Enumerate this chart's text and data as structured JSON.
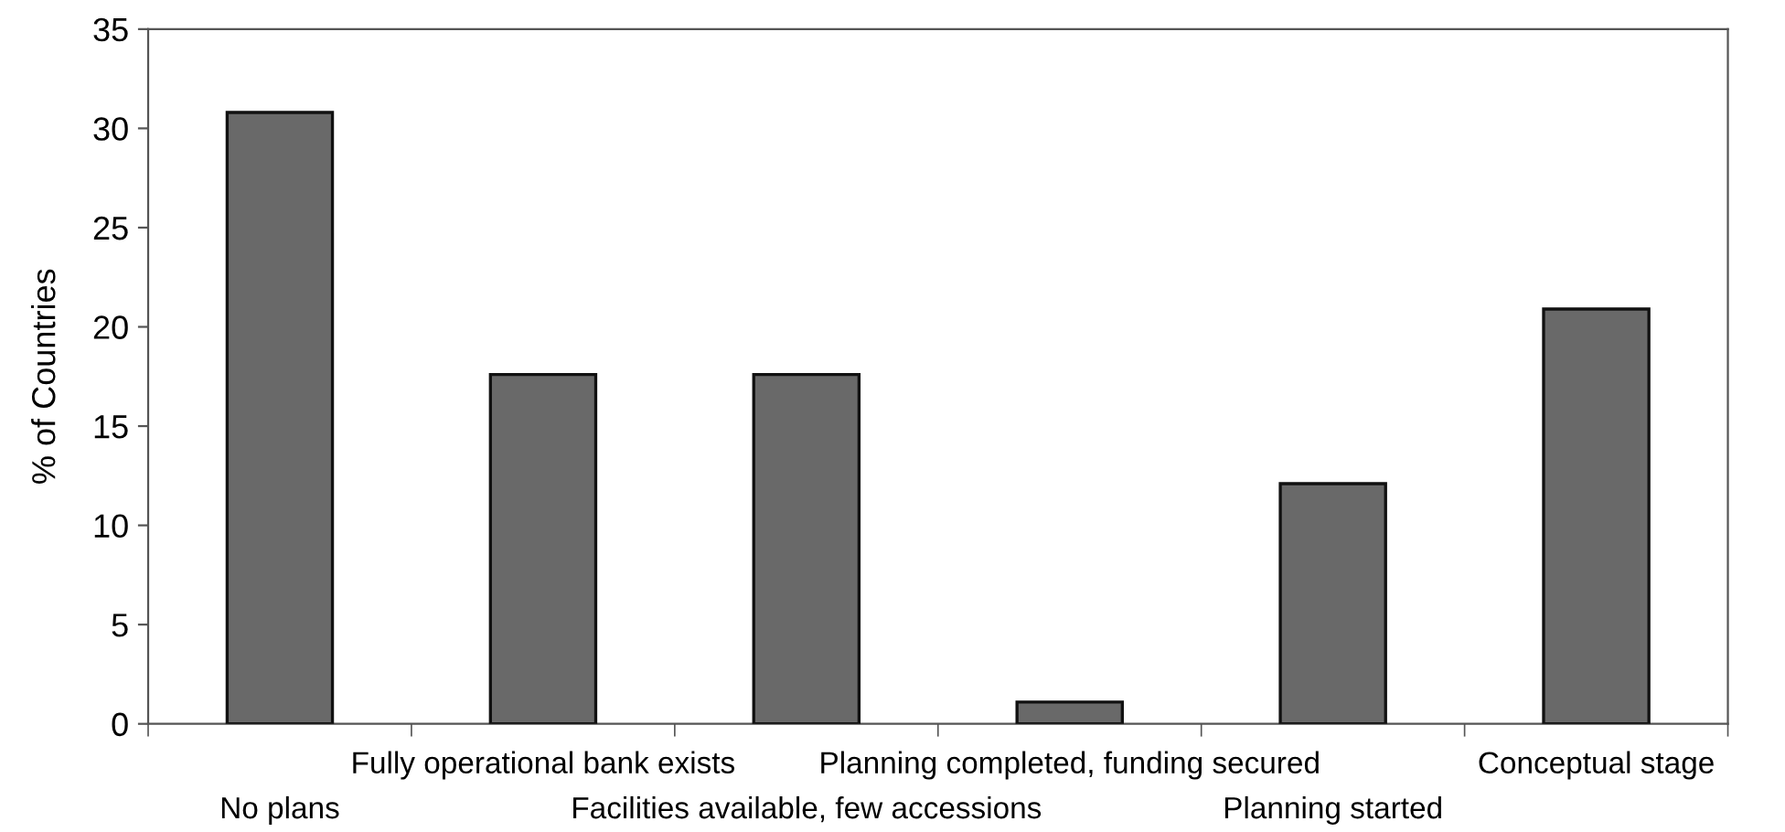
{
  "chart_data": {
    "type": "bar",
    "ylabel": "% of Countries",
    "categories": [
      "No plans",
      "Fully operational bank exists",
      "Facilities available, few accessions",
      "Planning completed, funding secured",
      "Planning started",
      "Conceptual stage"
    ],
    "values": [
      30.8,
      17.6,
      17.6,
      1.1,
      12.1,
      20.9
    ],
    "color": "#696969",
    "ylim": [
      0,
      35
    ],
    "yticks": [
      0,
      5,
      10,
      15,
      20,
      25,
      30,
      35
    ],
    "grid": false
  }
}
